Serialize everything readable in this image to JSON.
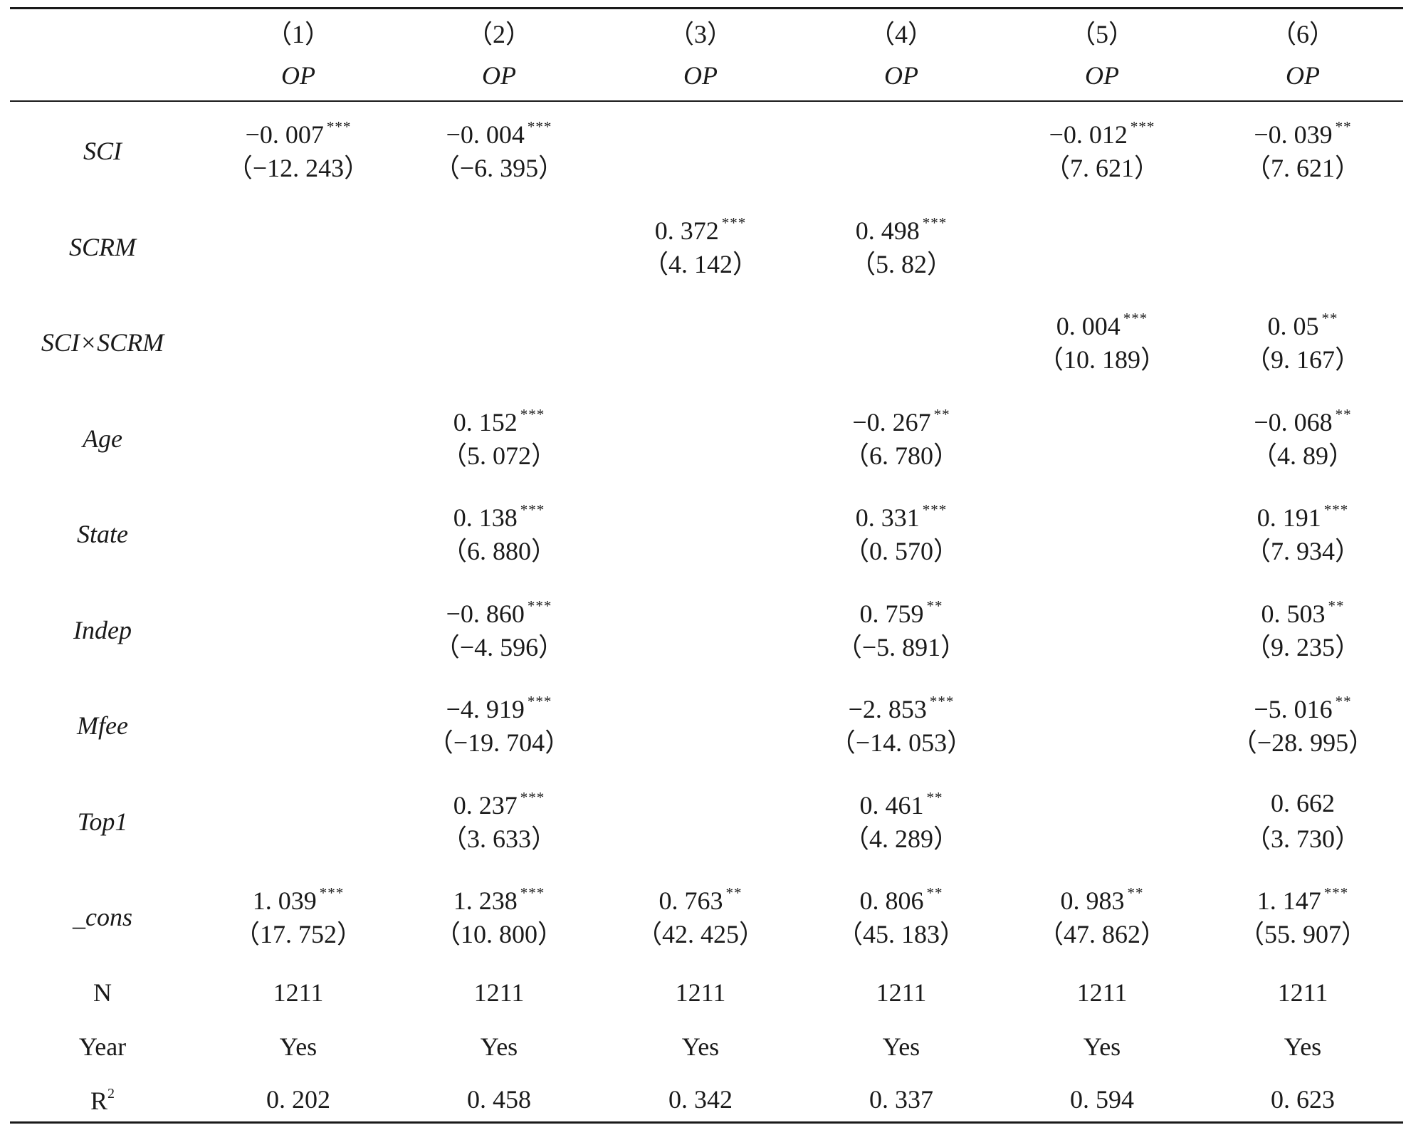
{
  "columns": [
    {
      "num": "（1）",
      "var": "OP"
    },
    {
      "num": "（2）",
      "var": "OP"
    },
    {
      "num": "（3）",
      "var": "OP"
    },
    {
      "num": "（4）",
      "var": "OP"
    },
    {
      "num": "（5）",
      "var": "OP"
    },
    {
      "num": "（6）",
      "var": "OP"
    }
  ],
  "rows": [
    {
      "label": "SCI",
      "italic": true,
      "cells": [
        {
          "coef": "−0. 007",
          "stars": "***",
          "t": "（−12. 243）"
        },
        {
          "coef": "−0. 004",
          "stars": "***",
          "t": "（−6. 395）"
        },
        null,
        null,
        {
          "coef": "−0. 012",
          "stars": "***",
          "t": "（7. 621）"
        },
        {
          "coef": "−0. 039",
          "stars": "**",
          "t": "（7. 621）"
        }
      ]
    },
    {
      "label": "SCRM",
      "italic": true,
      "cells": [
        null,
        null,
        {
          "coef": "0. 372",
          "stars": "***",
          "t": "（4. 142）"
        },
        {
          "coef": "0. 498",
          "stars": "***",
          "t": "（5. 82）"
        },
        null,
        null
      ]
    },
    {
      "label": "SCI×SCRM",
      "italic": true,
      "cells": [
        null,
        null,
        null,
        null,
        {
          "coef": "0. 004",
          "stars": "***",
          "t": "（10. 189）"
        },
        {
          "coef": "0. 05",
          "stars": "**",
          "t": "（9. 167）"
        }
      ]
    },
    {
      "label": "Age",
      "italic": true,
      "cells": [
        null,
        {
          "coef": "0. 152",
          "stars": "***",
          "t": "（5. 072）"
        },
        null,
        {
          "coef": "−0. 267",
          "stars": "**",
          "t": "（6. 780）"
        },
        null,
        {
          "coef": "−0. 068",
          "stars": "**",
          "t": "（4. 89）"
        }
      ]
    },
    {
      "label": "State",
      "italic": true,
      "cells": [
        null,
        {
          "coef": "0. 138",
          "stars": "***",
          "t": "（6. 880）"
        },
        null,
        {
          "coef": "0. 331",
          "stars": "***",
          "t": "（0. 570）"
        },
        null,
        {
          "coef": "0. 191",
          "stars": "***",
          "t": "（7. 934）"
        }
      ]
    },
    {
      "label": "Indep",
      "italic": true,
      "cells": [
        null,
        {
          "coef": "−0. 860",
          "stars": "***",
          "t": "（−4. 596）"
        },
        null,
        {
          "coef": "0. 759",
          "stars": "**",
          "t": "（−5. 891）"
        },
        null,
        {
          "coef": "0. 503",
          "stars": "**",
          "t": "（9. 235）"
        }
      ]
    },
    {
      "label": "Mfee",
      "italic": true,
      "cells": [
        null,
        {
          "coef": "−4. 919",
          "stars": "***",
          "t": "（−19. 704）"
        },
        null,
        {
          "coef": "−2. 853",
          "stars": "***",
          "t": "（−14. 053）"
        },
        null,
        {
          "coef": "−5. 016",
          "stars": "**",
          "t": "（−28. 995）"
        }
      ]
    },
    {
      "label": "Top1",
      "italic": true,
      "cells": [
        null,
        {
          "coef": "0. 237",
          "stars": "***",
          "t": "（3. 633）"
        },
        null,
        {
          "coef": "0. 461",
          "stars": "**",
          "t": "（4. 289）"
        },
        null,
        {
          "coef": "0. 662",
          "stars": "",
          "t": "（3. 730）"
        }
      ]
    },
    {
      "label": "_cons",
      "italic": true,
      "cells": [
        {
          "coef": "1. 039",
          "stars": "***",
          "t": "（17. 752）"
        },
        {
          "coef": "1. 238",
          "stars": "***",
          "t": "（10. 800）"
        },
        {
          "coef": "0. 763",
          "stars": "**",
          "t": "（42. 425）"
        },
        {
          "coef": "0. 806",
          "stars": "**",
          "t": "（45. 183）"
        },
        {
          "coef": "0. 983",
          "stars": "**",
          "t": "（47. 862）"
        },
        {
          "coef": "1. 147",
          "stars": "***",
          "t": "（55. 907）"
        }
      ]
    }
  ],
  "footer_rows": [
    {
      "label": "N",
      "values": [
        "1211",
        "1211",
        "1211",
        "1211",
        "1211",
        "1211"
      ]
    },
    {
      "label": "Year",
      "values": [
        "Yes",
        "Yes",
        "Yes",
        "Yes",
        "Yes",
        "Yes"
      ]
    },
    {
      "label": "R",
      "label_sup": "2",
      "values": [
        "0. 202",
        "0. 458",
        "0. 342",
        "0. 337",
        "0. 594",
        "0. 623"
      ]
    }
  ]
}
